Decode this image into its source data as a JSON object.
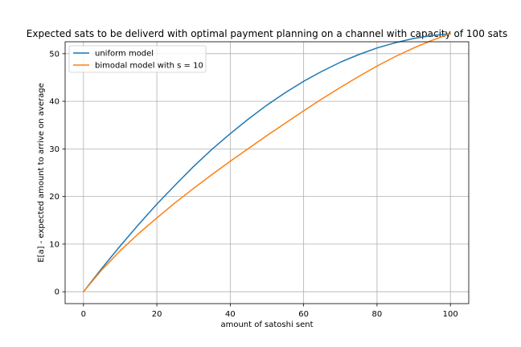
{
  "chart_data": {
    "type": "line",
    "title": "Expected sats to be deliverd with optimal payment planning on a channel with capacity of 100 sats",
    "xlabel": "amount of satoshi sent",
    "ylabel": "E[a] - expected amount to arrive on average",
    "xlim": [
      -5,
      105
    ],
    "ylim": [
      -2.5,
      52.5
    ],
    "xticks": [
      0,
      20,
      40,
      60,
      80,
      100
    ],
    "xtick_labels": [
      "0",
      "20",
      "40",
      "60",
      "80",
      "100"
    ],
    "yticks": [
      0,
      10,
      20,
      30,
      40,
      50
    ],
    "ytick_labels": [
      "0",
      "10",
      "20",
      "30",
      "40",
      "50"
    ],
    "grid": true,
    "legend_position": "top-left",
    "x": [
      0,
      5,
      10,
      15,
      20,
      25,
      30,
      35,
      40,
      45,
      50,
      55,
      60,
      65,
      70,
      75,
      80,
      85,
      90,
      95,
      100
    ],
    "series": [
      {
        "name": "uniform model",
        "color": "#1f77b4",
        "values": [
          0,
          4.9,
          9.6,
          14.1,
          18.4,
          22.4,
          26.3,
          29.9,
          33.2,
          36.3,
          39.2,
          41.8,
          44.2,
          46.3,
          48.2,
          49.8,
          51.2,
          52.3,
          53.2,
          53.8,
          54.2
        ]
      },
      {
        "name": "bimodal model with s = 10",
        "color": "#ff7f0e",
        "values": [
          0,
          4.6,
          8.6,
          12.2,
          15.5,
          18.7,
          21.7,
          24.6,
          27.4,
          30.1,
          32.8,
          35.4,
          38.0,
          40.5,
          42.9,
          45.2,
          47.4,
          49.4,
          51.2,
          52.8,
          54.2
        ]
      }
    ]
  }
}
